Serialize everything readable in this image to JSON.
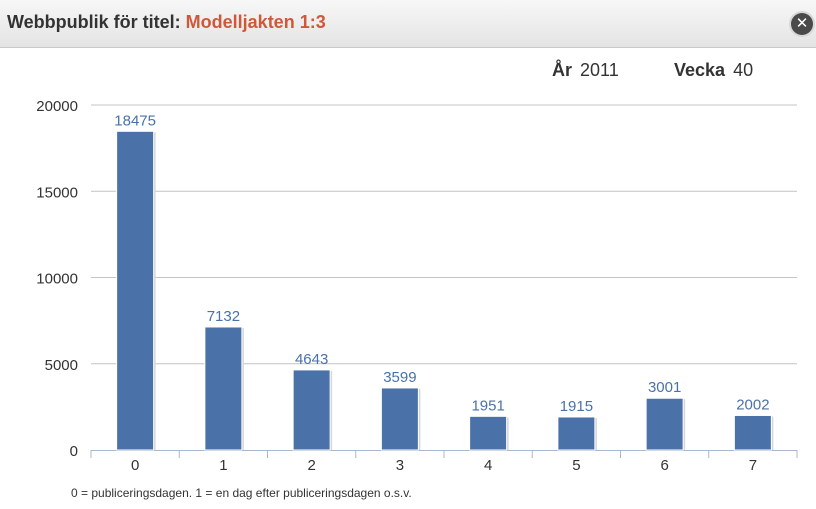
{
  "header": {
    "title_prefix": "Webbpublik för titel:",
    "title_name": "Modelljakten 1:3",
    "close_glyph": "✕",
    "close_icon": "close-icon"
  },
  "period": {
    "year_label": "År",
    "year_value": "2011",
    "week_label": "Vecka",
    "week_value": "40"
  },
  "footnote": "0 = publiceringsdagen. 1 = en dag efter publiceringsdagen o.s.v.",
  "colors": {
    "bar": "#4a72a8",
    "accent": "#d0583a",
    "label": "#4a72a8"
  },
  "chart_data": {
    "type": "bar",
    "categories": [
      "0",
      "1",
      "2",
      "3",
      "4",
      "5",
      "6",
      "7"
    ],
    "values": [
      18475,
      7132,
      4643,
      3599,
      1951,
      1915,
      3001,
      2002
    ],
    "yticks": [
      0,
      5000,
      10000,
      15000,
      20000
    ],
    "ylim": [
      0,
      20000
    ],
    "grid": true,
    "data_labels": true
  }
}
